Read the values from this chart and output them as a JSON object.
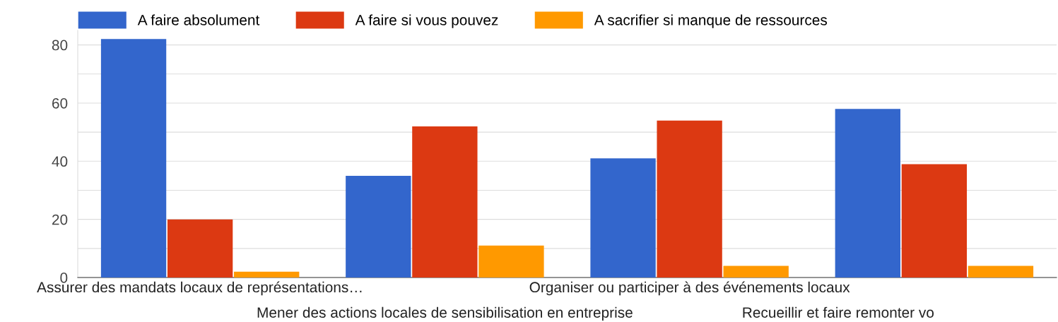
{
  "chart_data": {
    "type": "bar",
    "categories": [
      "Assurer des mandats locaux de représentations…",
      "Mener des actions locales de sensibilisation en entreprise",
      "Organiser ou participer à des événements locaux",
      "Recueillir et faire remonter vo"
    ],
    "series": [
      {
        "name": "A faire absolument",
        "color": "#3366cc",
        "values": [
          82,
          35,
          41,
          58
        ]
      },
      {
        "name": "A faire si vous pouvez",
        "color": "#dc3912",
        "values": [
          20,
          52,
          54,
          39
        ]
      },
      {
        "name": "A sacrifier si manque de ressources",
        "color": "#ff9900",
        "values": [
          2,
          11,
          4,
          4
        ]
      }
    ],
    "ylim": [
      0,
      85
    ],
    "yticks": [
      0,
      {
        "value": 10,
        "label": null
      },
      20,
      {
        "value": 30,
        "label": null
      },
      40,
      {
        "value": 50,
        "label": null
      },
      60,
      {
        "value": 70,
        "label": null
      },
      80
    ],
    "grid": "y",
    "legend": "top left"
  }
}
